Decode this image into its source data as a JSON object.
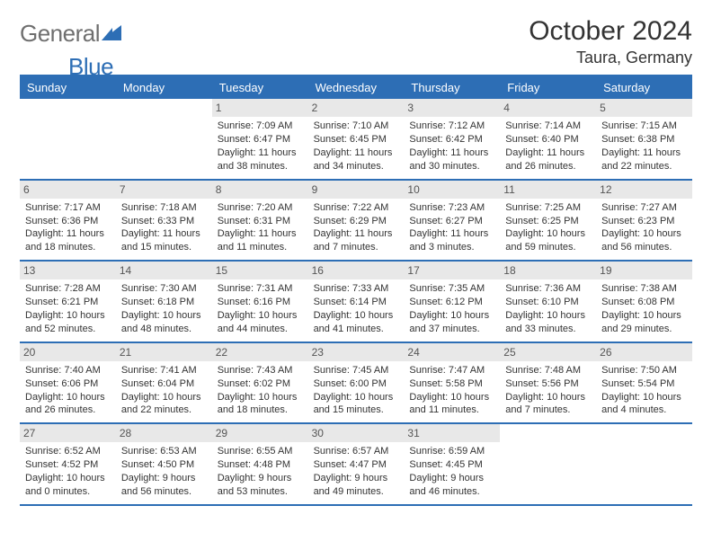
{
  "brand": {
    "general": "General",
    "blue": "Blue"
  },
  "title": "October 2024",
  "location": "Taura, Germany",
  "colors": {
    "accent": "#2d6eb5",
    "header_bg": "#2d6eb5",
    "daynum_bg": "#e8e8e8",
    "text": "#333333",
    "logo_gray": "#6f6f6f"
  },
  "weekdays": [
    "Sunday",
    "Monday",
    "Tuesday",
    "Wednesday",
    "Thursday",
    "Friday",
    "Saturday"
  ],
  "layout": {
    "first_weekday_index": 2,
    "days_in_month": 31,
    "columns": 7
  },
  "days": [
    {
      "n": 1,
      "sunrise": "Sunrise: 7:09 AM",
      "sunset": "Sunset: 6:47 PM",
      "daylight": "Daylight: 11 hours and 38 minutes."
    },
    {
      "n": 2,
      "sunrise": "Sunrise: 7:10 AM",
      "sunset": "Sunset: 6:45 PM",
      "daylight": "Daylight: 11 hours and 34 minutes."
    },
    {
      "n": 3,
      "sunrise": "Sunrise: 7:12 AM",
      "sunset": "Sunset: 6:42 PM",
      "daylight": "Daylight: 11 hours and 30 minutes."
    },
    {
      "n": 4,
      "sunrise": "Sunrise: 7:14 AM",
      "sunset": "Sunset: 6:40 PM",
      "daylight": "Daylight: 11 hours and 26 minutes."
    },
    {
      "n": 5,
      "sunrise": "Sunrise: 7:15 AM",
      "sunset": "Sunset: 6:38 PM",
      "daylight": "Daylight: 11 hours and 22 minutes."
    },
    {
      "n": 6,
      "sunrise": "Sunrise: 7:17 AM",
      "sunset": "Sunset: 6:36 PM",
      "daylight": "Daylight: 11 hours and 18 minutes."
    },
    {
      "n": 7,
      "sunrise": "Sunrise: 7:18 AM",
      "sunset": "Sunset: 6:33 PM",
      "daylight": "Daylight: 11 hours and 15 minutes."
    },
    {
      "n": 8,
      "sunrise": "Sunrise: 7:20 AM",
      "sunset": "Sunset: 6:31 PM",
      "daylight": "Daylight: 11 hours and 11 minutes."
    },
    {
      "n": 9,
      "sunrise": "Sunrise: 7:22 AM",
      "sunset": "Sunset: 6:29 PM",
      "daylight": "Daylight: 11 hours and 7 minutes."
    },
    {
      "n": 10,
      "sunrise": "Sunrise: 7:23 AM",
      "sunset": "Sunset: 6:27 PM",
      "daylight": "Daylight: 11 hours and 3 minutes."
    },
    {
      "n": 11,
      "sunrise": "Sunrise: 7:25 AM",
      "sunset": "Sunset: 6:25 PM",
      "daylight": "Daylight: 10 hours and 59 minutes."
    },
    {
      "n": 12,
      "sunrise": "Sunrise: 7:27 AM",
      "sunset": "Sunset: 6:23 PM",
      "daylight": "Daylight: 10 hours and 56 minutes."
    },
    {
      "n": 13,
      "sunrise": "Sunrise: 7:28 AM",
      "sunset": "Sunset: 6:21 PM",
      "daylight": "Daylight: 10 hours and 52 minutes."
    },
    {
      "n": 14,
      "sunrise": "Sunrise: 7:30 AM",
      "sunset": "Sunset: 6:18 PM",
      "daylight": "Daylight: 10 hours and 48 minutes."
    },
    {
      "n": 15,
      "sunrise": "Sunrise: 7:31 AM",
      "sunset": "Sunset: 6:16 PM",
      "daylight": "Daylight: 10 hours and 44 minutes."
    },
    {
      "n": 16,
      "sunrise": "Sunrise: 7:33 AM",
      "sunset": "Sunset: 6:14 PM",
      "daylight": "Daylight: 10 hours and 41 minutes."
    },
    {
      "n": 17,
      "sunrise": "Sunrise: 7:35 AM",
      "sunset": "Sunset: 6:12 PM",
      "daylight": "Daylight: 10 hours and 37 minutes."
    },
    {
      "n": 18,
      "sunrise": "Sunrise: 7:36 AM",
      "sunset": "Sunset: 6:10 PM",
      "daylight": "Daylight: 10 hours and 33 minutes."
    },
    {
      "n": 19,
      "sunrise": "Sunrise: 7:38 AM",
      "sunset": "Sunset: 6:08 PM",
      "daylight": "Daylight: 10 hours and 29 minutes."
    },
    {
      "n": 20,
      "sunrise": "Sunrise: 7:40 AM",
      "sunset": "Sunset: 6:06 PM",
      "daylight": "Daylight: 10 hours and 26 minutes."
    },
    {
      "n": 21,
      "sunrise": "Sunrise: 7:41 AM",
      "sunset": "Sunset: 6:04 PM",
      "daylight": "Daylight: 10 hours and 22 minutes."
    },
    {
      "n": 22,
      "sunrise": "Sunrise: 7:43 AM",
      "sunset": "Sunset: 6:02 PM",
      "daylight": "Daylight: 10 hours and 18 minutes."
    },
    {
      "n": 23,
      "sunrise": "Sunrise: 7:45 AM",
      "sunset": "Sunset: 6:00 PM",
      "daylight": "Daylight: 10 hours and 15 minutes."
    },
    {
      "n": 24,
      "sunrise": "Sunrise: 7:47 AM",
      "sunset": "Sunset: 5:58 PM",
      "daylight": "Daylight: 10 hours and 11 minutes."
    },
    {
      "n": 25,
      "sunrise": "Sunrise: 7:48 AM",
      "sunset": "Sunset: 5:56 PM",
      "daylight": "Daylight: 10 hours and 7 minutes."
    },
    {
      "n": 26,
      "sunrise": "Sunrise: 7:50 AM",
      "sunset": "Sunset: 5:54 PM",
      "daylight": "Daylight: 10 hours and 4 minutes."
    },
    {
      "n": 27,
      "sunrise": "Sunrise: 6:52 AM",
      "sunset": "Sunset: 4:52 PM",
      "daylight": "Daylight: 10 hours and 0 minutes."
    },
    {
      "n": 28,
      "sunrise": "Sunrise: 6:53 AM",
      "sunset": "Sunset: 4:50 PM",
      "daylight": "Daylight: 9 hours and 56 minutes."
    },
    {
      "n": 29,
      "sunrise": "Sunrise: 6:55 AM",
      "sunset": "Sunset: 4:48 PM",
      "daylight": "Daylight: 9 hours and 53 minutes."
    },
    {
      "n": 30,
      "sunrise": "Sunrise: 6:57 AM",
      "sunset": "Sunset: 4:47 PM",
      "daylight": "Daylight: 9 hours and 49 minutes."
    },
    {
      "n": 31,
      "sunrise": "Sunrise: 6:59 AM",
      "sunset": "Sunset: 4:45 PM",
      "daylight": "Daylight: 9 hours and 46 minutes."
    }
  ]
}
